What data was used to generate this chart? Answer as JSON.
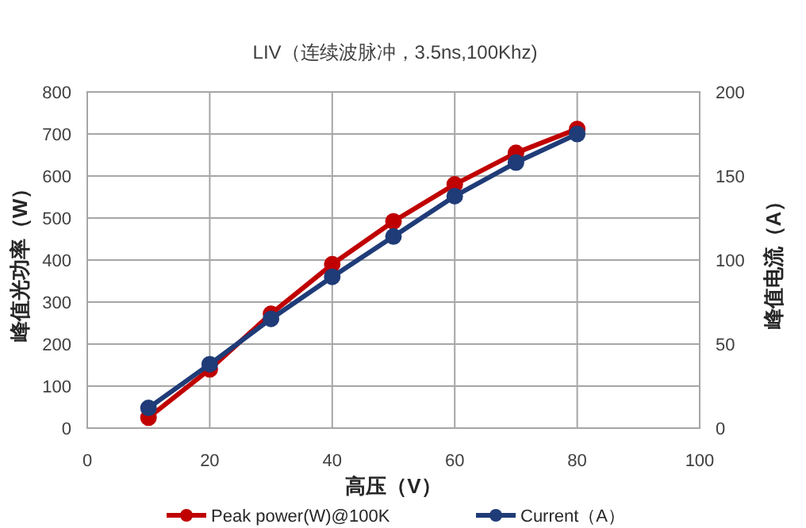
{
  "chart_data": {
    "type": "line",
    "title": "LIV（连续波脉冲，3.5ns,100Khz)",
    "xlabel": "高压（V）",
    "ylabel": "峰值光功率（W）",
    "y2label": "峰值电流（A）",
    "xlim": [
      0,
      100
    ],
    "xticks": [
      0,
      20,
      40,
      60,
      80,
      100
    ],
    "ylim": [
      0,
      800
    ],
    "yticks": [
      0,
      100,
      200,
      300,
      400,
      500,
      600,
      700,
      800
    ],
    "y2lim": [
      0,
      200
    ],
    "y2ticks": [
      0,
      50,
      100,
      150,
      200
    ],
    "grid": true,
    "legend": "bottom",
    "marker": "circle",
    "line_style": "solid",
    "x": [
      10,
      20,
      30,
      40,
      50,
      60,
      70,
      80
    ],
    "series": [
      {
        "name": "Peak power(W)@100K",
        "color": "#c00000",
        "values": [
          25,
          140,
          272,
          390,
          492,
          580,
          655,
          712
        ]
      },
      {
        "name": "Current（A）",
        "color": "#1f3c78",
        "axis": "y2",
        "values": [
          12,
          38,
          65,
          90,
          114,
          138,
          158,
          175
        ]
      }
    ]
  }
}
